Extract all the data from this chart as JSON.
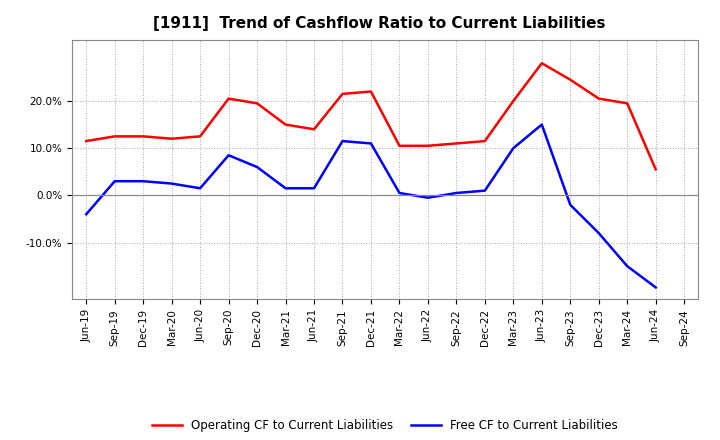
{
  "title": "[1911]  Trend of Cashflow Ratio to Current Liabilities",
  "x_labels": [
    "Jun-19",
    "Sep-19",
    "Dec-19",
    "Mar-20",
    "Jun-20",
    "Sep-20",
    "Dec-20",
    "Mar-21",
    "Jun-21",
    "Sep-21",
    "Dec-21",
    "Mar-22",
    "Jun-22",
    "Sep-22",
    "Dec-22",
    "Mar-23",
    "Jun-23",
    "Sep-23",
    "Dec-23",
    "Mar-24",
    "Jun-24",
    "Sep-24"
  ],
  "operating_cf": [
    11.5,
    12.5,
    12.5,
    12.0,
    12.5,
    20.5,
    19.5,
    15.0,
    14.0,
    21.5,
    22.0,
    10.5,
    10.5,
    11.0,
    11.5,
    20.0,
    28.0,
    24.5,
    20.5,
    19.5,
    5.5,
    null
  ],
  "free_cf": [
    -4.0,
    3.0,
    3.0,
    2.5,
    1.5,
    8.5,
    6.0,
    1.5,
    1.5,
    11.5,
    11.0,
    0.5,
    -0.5,
    0.5,
    1.0,
    10.0,
    15.0,
    -2.0,
    -8.0,
    -15.0,
    -19.5,
    null
  ],
  "operating_color": "#ff0000",
  "free_color": "#0000ff",
  "ylim_min": -22,
  "ylim_max": 33,
  "yticks": [
    -10.0,
    0.0,
    10.0,
    20.0
  ],
  "background_color": "#ffffff",
  "grid_color": "#aaaaaa",
  "title_fontsize": 11,
  "tick_fontsize": 7.5,
  "legend_labels": [
    "Operating CF to Current Liabilities",
    "Free CF to Current Liabilities"
  ]
}
